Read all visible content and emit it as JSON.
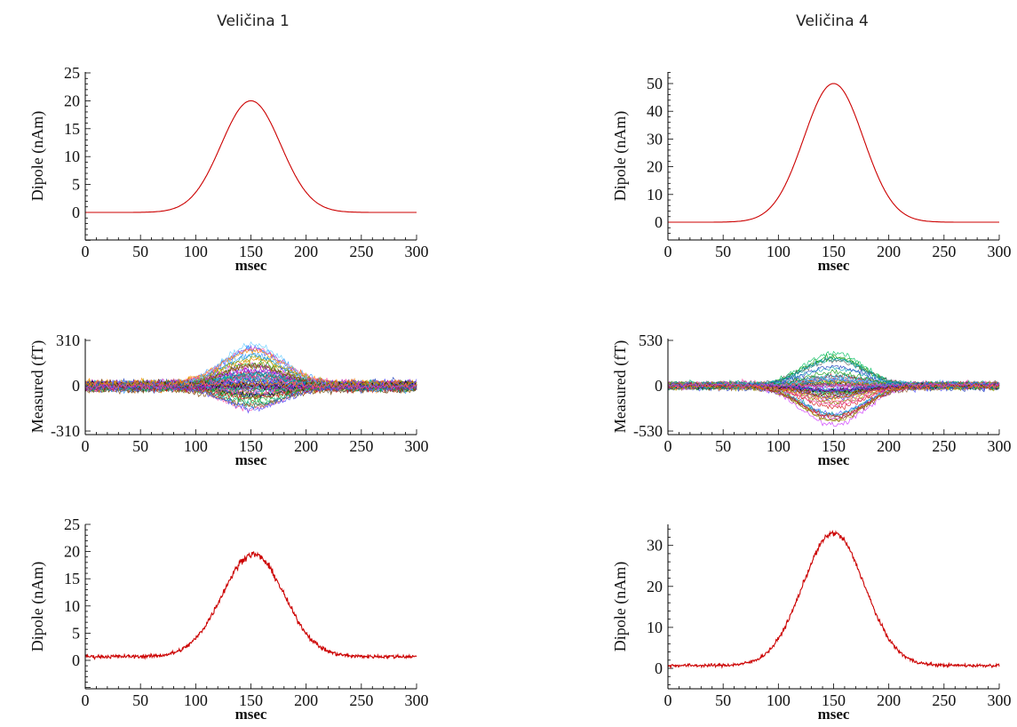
{
  "columns": [
    {
      "title": "Veličina 1"
    },
    {
      "title": "Veličina 4"
    }
  ],
  "chart_data": [
    {
      "id": "c1-dipole",
      "type": "line",
      "column": 0,
      "row": 0,
      "xlabel": "msec",
      "ylabel": "Dipole (nAm)",
      "xlim": [
        0,
        300
      ],
      "ylim": [
        -5,
        25
      ],
      "xticks": [
        "0",
        "50",
        "100",
        "150",
        "200",
        "250",
        "300"
      ],
      "yticks": [
        {
          "v": 0,
          "label": "0"
        },
        {
          "v": 5,
          "label": "5"
        },
        {
          "v": 10,
          "label": "10"
        },
        {
          "v": 15,
          "label": "15"
        },
        {
          "v": 20,
          "label": "20"
        },
        {
          "v": 25,
          "label": "25"
        }
      ],
      "series": [
        {
          "shape": "gaussian",
          "peak_x": 150,
          "peak_y": 20,
          "sigma": 27,
          "baseline": 0,
          "noise": 0,
          "color": "#cc0000"
        }
      ]
    },
    {
      "id": "c4-dipole",
      "type": "line",
      "column": 1,
      "row": 0,
      "xlabel": "msec",
      "ylabel": "Dipole (nAm)",
      "xlim": [
        0,
        300
      ],
      "ylim": [
        -5,
        55
      ],
      "xticks": [
        "0",
        "50",
        "100",
        "150",
        "200",
        "250",
        "300"
      ],
      "yticks": [
        {
          "v": 0,
          "label": "0"
        },
        {
          "v": 10,
          "label": "10"
        },
        {
          "v": 20,
          "label": "20"
        },
        {
          "v": 30,
          "label": "30"
        },
        {
          "v": 40,
          "label": "40"
        },
        {
          "v": 50,
          "label": "50"
        }
      ],
      "series": [
        {
          "shape": "gaussian",
          "peak_x": 150,
          "peak_y": 50,
          "sigma": 27,
          "baseline": 0,
          "noise": 0,
          "color": "#cc0000"
        }
      ]
    },
    {
      "id": "c1-measured",
      "type": "line",
      "column": 0,
      "row": 1,
      "xlabel": "msec",
      "ylabel": "Measured (fT)",
      "xlim": [
        0,
        300
      ],
      "ylim": [
        -310,
        310
      ],
      "xticks": [
        "0",
        "50",
        "100",
        "150",
        "200",
        "250",
        "300"
      ],
      "yticks": [
        {
          "v": 310,
          "label": "310"
        },
        {
          "v": 0,
          "label": "0"
        },
        {
          "v": -310,
          "label": "-310"
        }
      ],
      "multi_channel": {
        "channels": 64,
        "peak_x": 152,
        "sigma": 28,
        "max_amp": 290,
        "min_amp": -175,
        "noise": 24,
        "offset_spread": 26
      }
    },
    {
      "id": "c4-measured",
      "type": "line",
      "column": 1,
      "row": 1,
      "xlabel": "msec",
      "ylabel": "Measured (fT)",
      "xlim": [
        0,
        300
      ],
      "ylim": [
        -530,
        530
      ],
      "xticks": [
        "0",
        "50",
        "100",
        "150",
        "200",
        "250",
        "300"
      ],
      "yticks": [
        {
          "v": 530,
          "label": "530"
        },
        {
          "v": 0,
          "label": "0"
        },
        {
          "v": -530,
          "label": "-530"
        }
      ],
      "multi_channel": {
        "channels": 64,
        "peak_x": 150,
        "sigma": 28,
        "max_amp": 420,
        "min_amp": -480,
        "noise": 30,
        "offset_spread": 30
      }
    },
    {
      "id": "c1-estimated",
      "type": "line",
      "column": 0,
      "row": 2,
      "xlabel": "msec",
      "ylabel": "Dipole (nAm)",
      "xlim": [
        0,
        300
      ],
      "ylim": [
        -5,
        25
      ],
      "xticks": [
        "0",
        "50",
        "100",
        "150",
        "200",
        "250",
        "300"
      ],
      "yticks": [
        {
          "v": 0,
          "label": "0"
        },
        {
          "v": 5,
          "label": "5"
        },
        {
          "v": 10,
          "label": "10"
        },
        {
          "v": 15,
          "label": "15"
        },
        {
          "v": 20,
          "label": "20"
        },
        {
          "v": 25,
          "label": "25"
        }
      ],
      "series": [
        {
          "shape": "gaussian",
          "peak_x": 152,
          "peak_y": 19.5,
          "sigma": 28,
          "baseline": 0.7,
          "noise": 0.35,
          "color": "#cc0000"
        }
      ]
    },
    {
      "id": "c4-estimated",
      "type": "line",
      "column": 1,
      "row": 2,
      "xlabel": "msec",
      "ylabel": "Dipole (nAm)",
      "xlim": [
        0,
        300
      ],
      "ylim": [
        -5,
        38
      ],
      "xticks": [
        "0",
        "50",
        "100",
        "150",
        "200",
        "250",
        "300"
      ],
      "yticks": [
        {
          "v": 0,
          "label": "0"
        },
        {
          "v": 10,
          "label": "10"
        },
        {
          "v": 20,
          "label": "20"
        },
        {
          "v": 30,
          "label": "30"
        }
      ],
      "series": [
        {
          "shape": "gaussian",
          "peak_x": 150,
          "peak_y": 33,
          "sigma": 28,
          "baseline": 0.7,
          "noise": 0.4,
          "color": "#cc0000"
        }
      ]
    }
  ]
}
